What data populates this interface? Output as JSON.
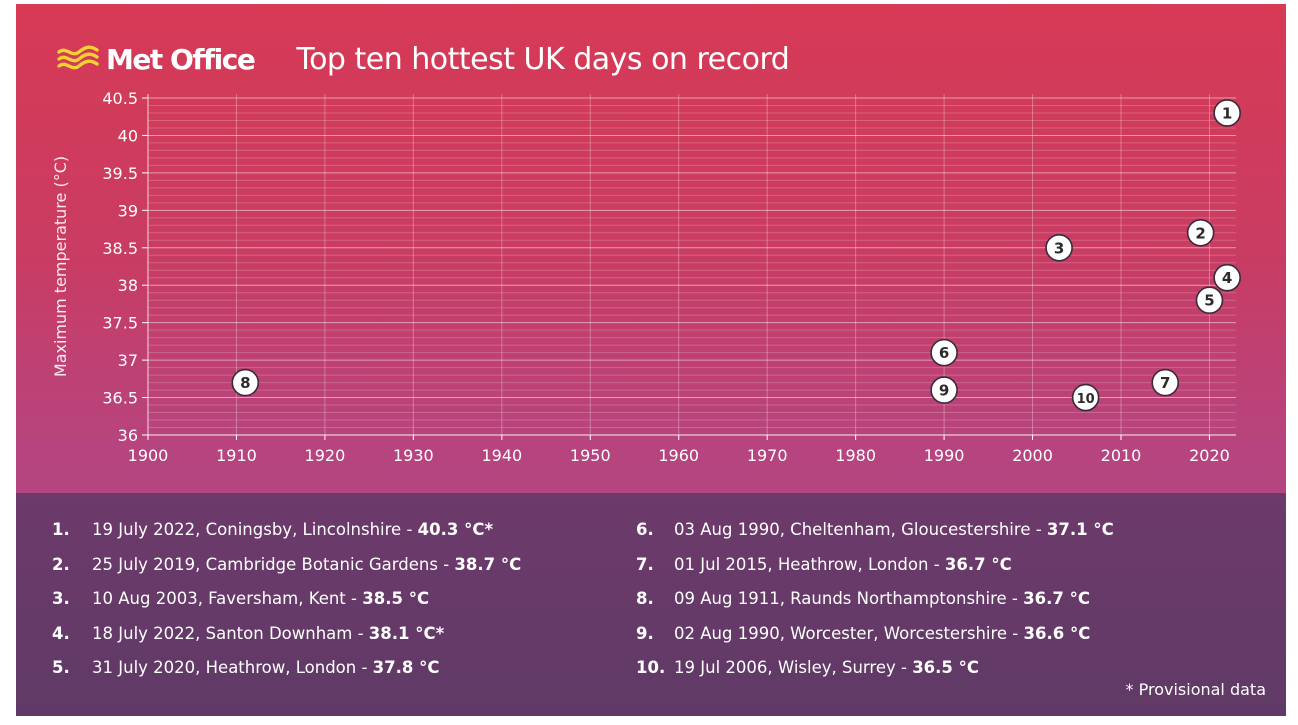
{
  "brand": {
    "name": "Met Office"
  },
  "title": "Top ten hottest UK days on record",
  "chart_data": {
    "type": "scatter",
    "title": "Top ten hottest UK days on record",
    "xlabel": "",
    "ylabel": "Maximum temperature (°C)",
    "xlim": [
      1900,
      2023
    ],
    "ylim": [
      36,
      40.5
    ],
    "x_ticks": [
      1900,
      1910,
      1920,
      1930,
      1940,
      1950,
      1960,
      1970,
      1980,
      1990,
      2000,
      2010,
      2020
    ],
    "y_ticks": [
      36,
      36.5,
      37,
      37.5,
      38,
      38.5,
      39,
      39.5,
      40,
      40.5
    ],
    "grid": true,
    "points": [
      {
        "label": "1",
        "x": 2022,
        "y": 40.3
      },
      {
        "label": "2",
        "x": 2019,
        "y": 38.7
      },
      {
        "label": "3",
        "x": 2003,
        "y": 38.5
      },
      {
        "label": "4",
        "x": 2022,
        "y": 38.1
      },
      {
        "label": "5",
        "x": 2020,
        "y": 37.8
      },
      {
        "label": "6",
        "x": 1990,
        "y": 37.1
      },
      {
        "label": "7",
        "x": 2015,
        "y": 36.7
      },
      {
        "label": "8",
        "x": 1911,
        "y": 36.7
      },
      {
        "label": "9",
        "x": 1990,
        "y": 36.6
      },
      {
        "label": "10",
        "x": 2006,
        "y": 36.5
      }
    ]
  },
  "records_left": [
    {
      "rank": "1.",
      "text": "19 July 2022, Coningsby, Lincolnshire - ",
      "value": "40.3 °C*"
    },
    {
      "rank": "2.",
      "text": "25 July 2019, Cambridge Botanic Gardens - ",
      "value": "38.7 °C"
    },
    {
      "rank": "3.",
      "text": "10 Aug 2003, Faversham, Kent - ",
      "value": "38.5 °C"
    },
    {
      "rank": "4.",
      "text": "18 July 2022, Santon Downham - ",
      "value": "38.1 °C*"
    },
    {
      "rank": "5.",
      "text": "31 July 2020, Heathrow, London - ",
      "value": "37.8 °C"
    }
  ],
  "records_right": [
    {
      "rank": "6.",
      "text": "03 Aug 1990, Cheltenham, Gloucestershire - ",
      "value": "37.1 °C"
    },
    {
      "rank": "7.",
      "text": "01 Jul 2015, Heathrow, London - ",
      "value": "36.7 °C"
    },
    {
      "rank": "8.",
      "text": "09 Aug 1911, Raunds Northamptonshire - ",
      "value": "36.7 °C"
    },
    {
      "rank": "9.",
      "text": "02 Aug 1990, Worcester, Worcestershire - ",
      "value": "36.6 °C"
    },
    {
      "rank": "10.",
      "text": "19 Jul 2006, Wisley, Surrey - ",
      "value": "36.5 °C"
    }
  ],
  "footnote": "* Provisional data",
  "colors": {
    "background_top": "#d73a55",
    "background_bottom": "#a84a8e",
    "legend_panel": "#663a68",
    "logo_mark": "#f2d331",
    "text": "#ffffff",
    "marker_fill": "#ffffff",
    "marker_text": "#2b2b2b"
  }
}
